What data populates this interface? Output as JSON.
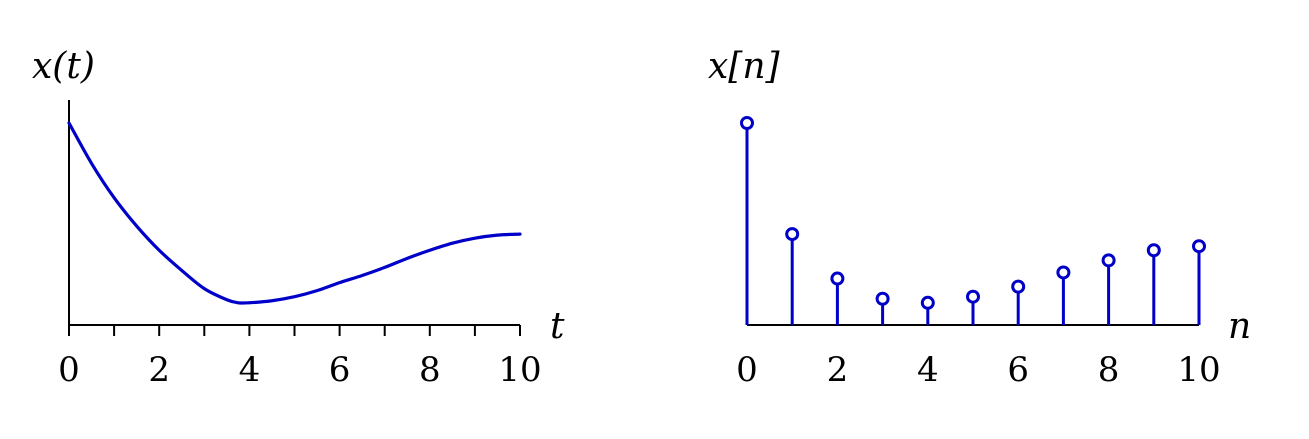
{
  "chart_data": [
    {
      "type": "line",
      "ylabel": "x(t)",
      "xlabel": "t",
      "xlim": [
        0,
        10
      ],
      "ylim": [
        0,
        1
      ],
      "x_ticks": [
        0,
        1,
        2,
        3,
        4,
        5,
        6,
        7,
        8,
        9,
        10
      ],
      "x_tick_labels": [
        "0",
        "2",
        "4",
        "6",
        "8",
        "10"
      ],
      "series": [
        {
          "color": "#0000c8",
          "x": [
            0,
            0.5,
            1,
            1.5,
            2,
            2.5,
            3,
            3.5,
            3.75,
            4,
            4.5,
            5,
            5.5,
            6,
            6.5,
            7,
            7.5,
            8,
            8.5,
            9,
            9.5,
            10
          ],
          "y": [
            1.0,
            0.8,
            0.63,
            0.49,
            0.37,
            0.27,
            0.18,
            0.125,
            0.11,
            0.11,
            0.12,
            0.14,
            0.17,
            0.21,
            0.245,
            0.285,
            0.33,
            0.37,
            0.405,
            0.43,
            0.445,
            0.45
          ]
        }
      ]
    },
    {
      "type": "stem",
      "ylabel": "x[n]",
      "xlabel": "n",
      "xlim": [
        0,
        10
      ],
      "ylim": [
        0,
        1
      ],
      "x_tick_labels": [
        "0",
        "2",
        "4",
        "6",
        "8",
        "10"
      ],
      "series": [
        {
          "color": "#0000c8",
          "x": [
            0,
            1,
            2,
            3,
            4,
            5,
            6,
            7,
            8,
            9,
            10
          ],
          "y": [
            1.0,
            0.45,
            0.23,
            0.13,
            0.11,
            0.14,
            0.19,
            0.26,
            0.32,
            0.37,
            0.39
          ]
        }
      ]
    }
  ]
}
